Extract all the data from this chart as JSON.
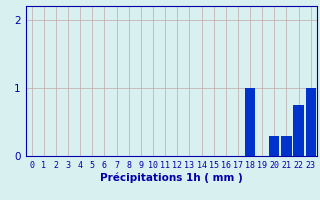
{
  "hours": [
    0,
    1,
    2,
    3,
    4,
    5,
    6,
    7,
    8,
    9,
    10,
    11,
    12,
    13,
    14,
    15,
    16,
    17,
    18,
    19,
    20,
    21,
    22,
    23
  ],
  "values": [
    0,
    0,
    0,
    0,
    0,
    0,
    0,
    0,
    0,
    0,
    0,
    0,
    0,
    0,
    0,
    0,
    0,
    0,
    1.0,
    0,
    0.3,
    0.3,
    0.75,
    1.0
  ],
  "bar_color": "#0033cc",
  "background_color": "#d8f0f0",
  "grid_color": "#c0a8a8",
  "axis_color": "#0000aa",
  "xlabel": "Précipitations 1h ( mm )",
  "ylim": [
    0,
    2.2
  ],
  "yticks": [
    0,
    1,
    2
  ],
  "xlim": [
    -0.5,
    23.5
  ],
  "xlabel_fontsize": 7.5,
  "tick_fontsize": 6.0,
  "ytick_fontsize": 7.5
}
